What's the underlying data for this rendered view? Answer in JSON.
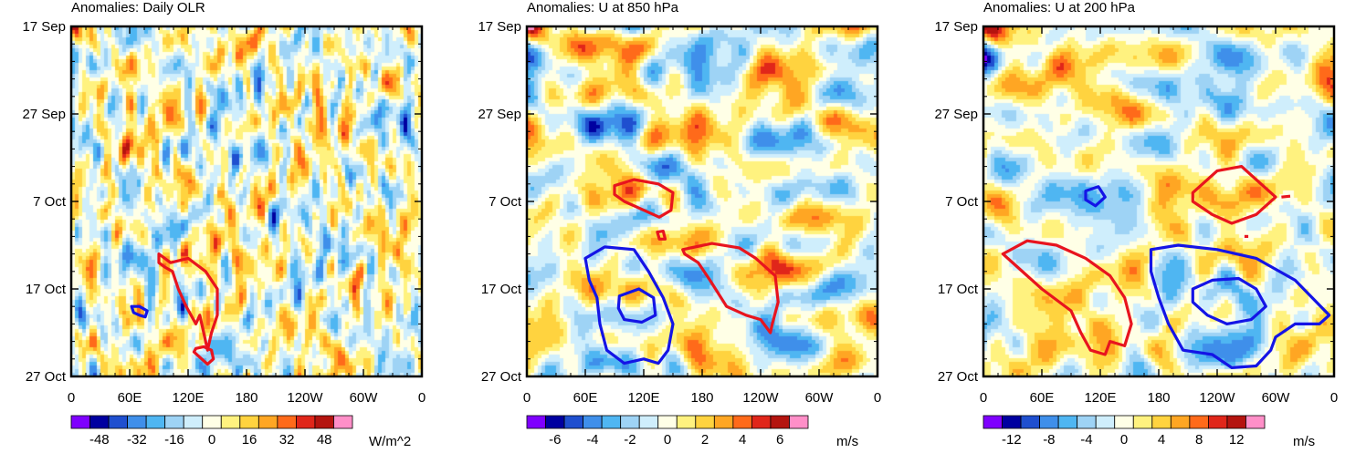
{
  "chart_data": [
    {
      "type": "heatmap",
      "title": "Anomalies: Daily OLR",
      "x_tick_labels": [
        "0",
        "60E",
        "120E",
        "180",
        "120W",
        "60W",
        "0"
      ],
      "x_ticks_deg": [
        0,
        60,
        120,
        180,
        240,
        300,
        360
      ],
      "y_tick_labels": [
        "17 Sep",
        "27 Sep",
        "7 Oct",
        "17 Oct",
        "27 Oct"
      ],
      "y_ticks_day": [
        0,
        10,
        20,
        30,
        40
      ],
      "xlim_deg": [
        0,
        360
      ],
      "ylim_day": [
        0,
        40
      ],
      "colorbar": {
        "unit": "W/m^2",
        "levels": [
          -56,
          -48,
          -40,
          -32,
          -24,
          -16,
          -8,
          0,
          8,
          16,
          24,
          32,
          40,
          48,
          56
        ],
        "labels": [
          "-48",
          "-32",
          "-16",
          "0",
          "16",
          "32",
          "48"
        ],
        "label_values": [
          -48,
          -32,
          -16,
          0,
          16,
          32,
          48
        ]
      },
      "contours": [
        {
          "color": "red",
          "points": [
            [
              90,
              26
            ],
            [
              102,
              27
            ],
            [
              120,
              26.5
            ],
            [
              138,
              28
            ],
            [
              150,
              30
            ],
            [
              150,
              33
            ],
            [
              144,
              35
            ],
            [
              140,
              37
            ],
            [
              136,
              35
            ],
            [
              132,
              33
            ],
            [
              128,
              34
            ],
            [
              118,
              32
            ],
            [
              110,
              30
            ],
            [
              104,
              28
            ],
            [
              96,
              27.5
            ],
            [
              90,
              27
            ]
          ]
        },
        {
          "color": "red",
          "points": [
            [
              128,
              36.8
            ],
            [
              136,
              36.6
            ],
            [
              144,
              37
            ],
            [
              146,
              38
            ],
            [
              140,
              38.6
            ],
            [
              132,
              37.8
            ],
            [
              126,
              37.2
            ]
          ]
        },
        {
          "color": "blue",
          "points": [
            [
              62,
              32
            ],
            [
              70,
              32
            ],
            [
              78,
              32.5
            ],
            [
              76,
              33.2
            ],
            [
              70,
              33
            ],
            [
              64,
              32.7
            ]
          ]
        }
      ]
    },
    {
      "type": "heatmap",
      "title": "Anomalies: U at 850 hPa",
      "x_tick_labels": [
        "0",
        "60E",
        "120E",
        "180",
        "120W",
        "60W",
        "0"
      ],
      "x_ticks_deg": [
        0,
        60,
        120,
        180,
        240,
        300,
        360
      ],
      "y_tick_labels": [
        "17 Sep",
        "27 Sep",
        "7 Oct",
        "17 Oct",
        "27 Oct"
      ],
      "y_ticks_day": [
        0,
        10,
        20,
        30,
        40
      ],
      "xlim_deg": [
        0,
        360
      ],
      "ylim_day": [
        0,
        40
      ],
      "colorbar": {
        "unit": "m/s",
        "levels": [
          -7,
          -6,
          -5,
          -4,
          -3,
          -2,
          -1,
          0,
          1,
          2,
          3,
          4,
          5,
          6,
          7
        ],
        "labels": [
          "-6",
          "-4",
          "-2",
          "0",
          "2",
          "4",
          "6"
        ],
        "label_values": [
          -6,
          -4,
          -2,
          0,
          2,
          4,
          6
        ]
      },
      "contours": [
        {
          "color": "red",
          "points": [
            [
              90,
              18.2
            ],
            [
              110,
              17.5
            ],
            [
              135,
              18
            ],
            [
              150,
              19
            ],
            [
              148,
              21
            ],
            [
              136,
              21.8
            ],
            [
              120,
              21
            ],
            [
              100,
              20
            ],
            [
              90,
              19.2
            ]
          ]
        },
        {
          "color": "red",
          "points": [
            [
              134,
              23.5
            ],
            [
              140,
              23.4
            ],
            [
              142,
              24.3
            ],
            [
              136,
              24.3
            ]
          ]
        },
        {
          "color": "red",
          "points": [
            [
              160,
              25.5
            ],
            [
              190,
              24.8
            ],
            [
              218,
              25.3
            ],
            [
              235,
              26.5
            ],
            [
              255,
              28.5
            ],
            [
              258,
              31.5
            ],
            [
              252,
              34
            ],
            [
              250,
              35
            ],
            [
              240,
              33.5
            ],
            [
              225,
              33
            ],
            [
              205,
              32
            ],
            [
              188,
              29
            ],
            [
              176,
              27
            ],
            [
              162,
              26
            ]
          ]
        },
        {
          "color": "blue",
          "points": [
            [
              60,
              26.5
            ],
            [
              80,
              25.2
            ],
            [
              110,
              25.5
            ],
            [
              125,
              28
            ],
            [
              140,
              31
            ],
            [
              150,
              34
            ],
            [
              145,
              37
            ],
            [
              135,
              38.5
            ],
            [
              120,
              38
            ],
            [
              100,
              38.5
            ],
            [
              82,
              37
            ],
            [
              75,
              34
            ],
            [
              72,
              31
            ],
            [
              64,
              29
            ]
          ]
        },
        {
          "color": "blue",
          "points": [
            [
              95,
              30.8
            ],
            [
              115,
              30
            ],
            [
              130,
              31
            ],
            [
              132,
              33
            ],
            [
              118,
              33.8
            ],
            [
              100,
              33.5
            ],
            [
              94,
              32.2
            ]
          ]
        }
      ]
    },
    {
      "type": "heatmap",
      "title": "Anomalies: U at 200 hPa",
      "x_tick_labels": [
        "0",
        "60E",
        "120E",
        "180",
        "120W",
        "60W",
        "0"
      ],
      "x_ticks_deg": [
        0,
        60,
        120,
        180,
        240,
        300,
        360
      ],
      "y_tick_labels": [
        "17 Sep",
        "27 Sep",
        "7 Oct",
        "17 Oct",
        "27 Oct"
      ],
      "y_ticks_day": [
        0,
        10,
        20,
        30,
        40
      ],
      "xlim_deg": [
        0,
        360
      ],
      "ylim_day": [
        0,
        40
      ],
      "colorbar": {
        "unit": "m/s",
        "levels": [
          -14,
          -12,
          -10,
          -8,
          -6,
          -4,
          -2,
          0,
          2,
          4,
          6,
          8,
          10,
          12,
          14
        ],
        "labels": [
          "-12",
          "-8",
          "-4",
          "0",
          "4",
          "8",
          "12"
        ],
        "label_values": [
          -12,
          -8,
          -4,
          0,
          4,
          8,
          12
        ]
      },
      "contours": [
        {
          "color": "red",
          "points": [
            [
              20,
              26
            ],
            [
              45,
              24.5
            ],
            [
              75,
              25
            ],
            [
              105,
              26.5
            ],
            [
              130,
              28.5
            ],
            [
              145,
              31
            ],
            [
              152,
              34
            ],
            [
              145,
              36.5
            ],
            [
              130,
              36
            ],
            [
              125,
              37.5
            ],
            [
              110,
              37
            ],
            [
              100,
              35
            ],
            [
              90,
              32.5
            ],
            [
              60,
              30
            ],
            [
              35,
              27.5
            ]
          ]
        },
        {
          "color": "red",
          "points": [
            [
              215,
              19
            ],
            [
              240,
              16.5
            ],
            [
              265,
              16
            ],
            [
              285,
              18
            ],
            [
              300,
              19.5
            ],
            [
              280,
              21.5
            ],
            [
              255,
              22.5
            ],
            [
              235,
              21.5
            ],
            [
              215,
              20
            ]
          ]
        },
        {
          "color": "red",
          "points": [
            [
              306,
              19.5
            ],
            [
              315,
              19.4
            ]
          ]
        },
        {
          "color": "red",
          "points": [
            [
              268,
              24
            ],
            [
              272,
              24
            ]
          ]
        },
        {
          "color": "blue",
          "points": [
            [
              105,
              18.8
            ],
            [
              118,
              18.3
            ],
            [
              125,
              19.5
            ],
            [
              115,
              20.5
            ],
            [
              105,
              19.8
            ]
          ]
        },
        {
          "color": "blue",
          "points": [
            [
              172,
              25.5
            ],
            [
              200,
              25
            ],
            [
              240,
              25.5
            ],
            [
              280,
              26.5
            ],
            [
              320,
              29
            ],
            [
              355,
              33
            ],
            [
              345,
              34
            ],
            [
              320,
              34
            ],
            [
              300,
              35.5
            ],
            [
              295,
              37
            ],
            [
              280,
              38.8
            ],
            [
              255,
              39
            ],
            [
              235,
              37.5
            ],
            [
              205,
              37
            ],
            [
              190,
              34
            ],
            [
              180,
              31
            ],
            [
              172,
              28
            ]
          ]
        },
        {
          "color": "blue",
          "points": [
            [
              215,
              30
            ],
            [
              235,
              29
            ],
            [
              262,
              28.8
            ],
            [
              280,
              30
            ],
            [
              290,
              32
            ],
            [
              275,
              33.5
            ],
            [
              250,
              34
            ],
            [
              230,
              33
            ],
            [
              215,
              31.5
            ]
          ]
        }
      ]
    }
  ]
}
